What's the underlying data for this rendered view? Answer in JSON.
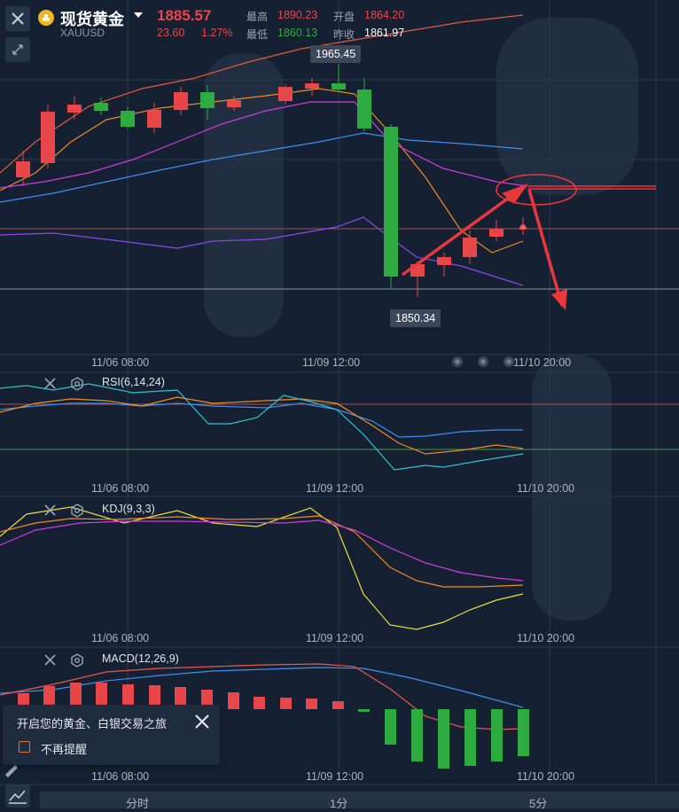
{
  "header": {
    "symbol_name": "现货黄金",
    "symbol_code": "XAUUSD",
    "price": "1885.57",
    "change": "23.60",
    "change_pct": "1.27%",
    "high_label": "最高",
    "high_value": "1890.23",
    "open_label": "开盘",
    "open_value": "1864.20",
    "low_label": "最低",
    "low_value": "1860.13",
    "prev_close_label": "昨收",
    "prev_close_value": "1861.97"
  },
  "main_chart": {
    "high_marker": "1965.45",
    "low_marker": "1850.34",
    "date_labels": [
      "11/06 08:00",
      "11/09 12:00",
      "11/10 20:00"
    ]
  },
  "rsi": {
    "title": "RSI(6,14,24)",
    "date_labels": [
      "11/06 08:00",
      "11/09 12:00",
      "11/10 20:00"
    ]
  },
  "kdj": {
    "title": "KDJ(9,3,3)",
    "date_labels": [
      "11/06 08:00",
      "11/09 12:00",
      "11/10 20:00"
    ]
  },
  "macd": {
    "title": "MACD(12,26,9)",
    "date_labels": [
      "11/06 08:00",
      "11/09 12:00",
      "11/10 20:00"
    ]
  },
  "popup": {
    "message": "开启您的黄金、白银交易之旅",
    "checkbox_label": "不再提醒"
  },
  "bottom_tabs": [
    "分时",
    "1分",
    "5分"
  ],
  "colors": {
    "up": "#e8474a",
    "down": "#2eab40",
    "background": "#152032",
    "accent_orange": "#e8742a",
    "annotation": "#e8383c"
  }
}
